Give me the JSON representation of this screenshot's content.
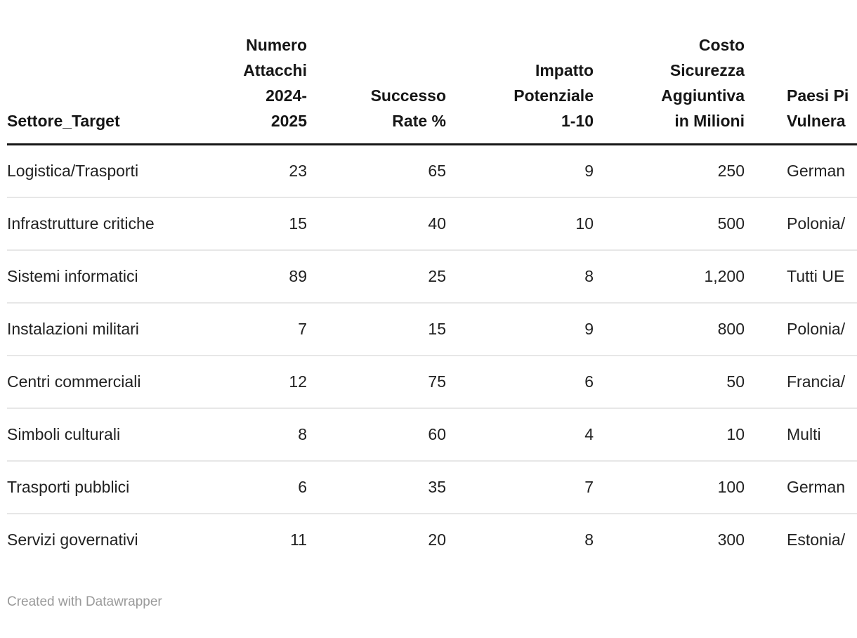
{
  "chart_data": {
    "type": "table",
    "columns": [
      {
        "header_lines": [
          "Settore_Target"
        ],
        "align": "left"
      },
      {
        "header_lines": [
          "Numero",
          "Attacchi",
          "2024-",
          "2025"
        ],
        "align": "right"
      },
      {
        "header_lines": [
          "Successo",
          "Rate %"
        ],
        "align": "right"
      },
      {
        "header_lines": [
          "Impatto",
          "Potenziale",
          "1-10"
        ],
        "align": "right"
      },
      {
        "header_lines": [
          "Costo",
          "Sicurezza",
          "Aggiuntiva",
          "in Milioni"
        ],
        "align": "right"
      },
      {
        "header_lines": [
          "Paesi Pi",
          "Vulnera"
        ],
        "align": "left",
        "clipped_at_right_edge": true
      }
    ],
    "rows": [
      {
        "settore": "Logistica/Trasporti",
        "attacchi": "23",
        "successo": "65",
        "impatto": "9",
        "costo": "250",
        "paesi": "German"
      },
      {
        "settore": "Infrastrutture critiche",
        "attacchi": "15",
        "successo": "40",
        "impatto": "10",
        "costo": "500",
        "paesi": "Polonia/"
      },
      {
        "settore": "Sistemi informatici",
        "attacchi": "89",
        "successo": "25",
        "impatto": "8",
        "costo": "1,200",
        "paesi": "Tutti UE"
      },
      {
        "settore": "Instalazioni militari",
        "attacchi": "7",
        "successo": "15",
        "impatto": "9",
        "costo": "800",
        "paesi": "Polonia/"
      },
      {
        "settore": "Centri commerciali",
        "attacchi": "12",
        "successo": "75",
        "impatto": "6",
        "costo": "50",
        "paesi": "Francia/"
      },
      {
        "settore": "Simboli culturali",
        "attacchi": "8",
        "successo": "60",
        "impatto": "4",
        "costo": "10",
        "paesi": "Multi"
      },
      {
        "settore": "Trasporti pubblici",
        "attacchi": "6",
        "successo": "35",
        "impatto": "7",
        "costo": "100",
        "paesi": "German"
      },
      {
        "settore": "Servizi governativi",
        "attacchi": "11",
        "successo": "20",
        "impatto": "8",
        "costo": "300",
        "paesi": "Estonia/"
      }
    ]
  },
  "footer": {
    "credit": "Created with Datawrapper"
  },
  "colors": {
    "header_text": "#161616",
    "body_text": "#222222",
    "header_rule": "#161616",
    "row_divider": "#e7e7e7",
    "credit_text": "#9a9a9a",
    "background": "#ffffff"
  }
}
